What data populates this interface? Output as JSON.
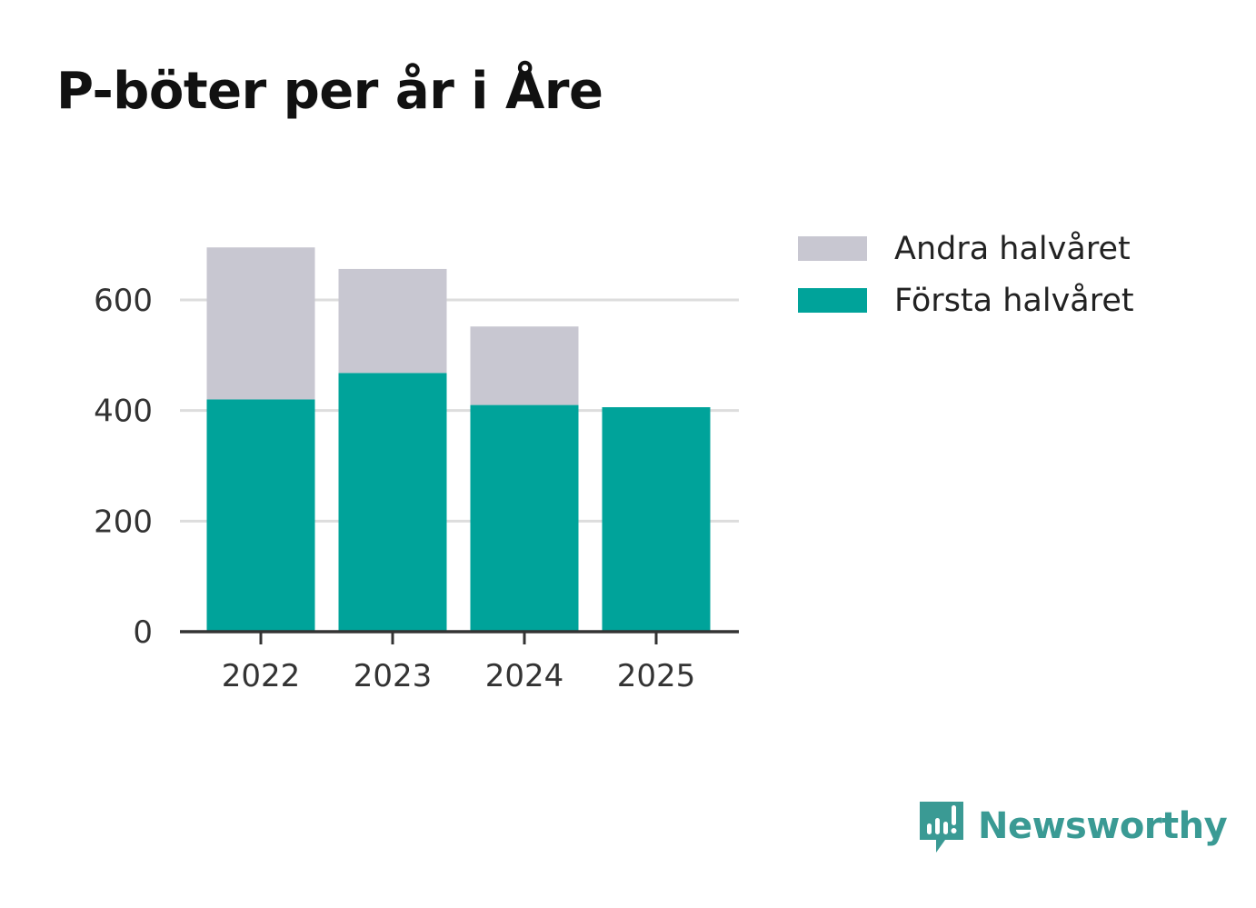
{
  "title": "P-böter per år i Åre",
  "colors": {
    "forsta": "#00a39a",
    "andra": "#c8c7d1",
    "grid": "#dddddd",
    "axis": "#333333",
    "brand": "#3a9a94"
  },
  "chart_data": {
    "type": "bar",
    "stacked": true,
    "title": "P-böter per år i Åre",
    "xlabel": "",
    "ylabel": "",
    "categories": [
      "2022",
      "2023",
      "2024",
      "2025"
    ],
    "series": [
      {
        "name": "Första halvåret",
        "values": [
          420,
          468,
          410,
          406
        ]
      },
      {
        "name": "Andra halvåret",
        "values": [
          275,
          188,
          142,
          0
        ]
      }
    ],
    "ylim": [
      0,
      700
    ],
    "yticks": [
      0,
      200,
      400,
      600
    ],
    "grid": true,
    "legend": "top-right"
  },
  "legend": {
    "items": [
      {
        "label": "Andra halvåret",
        "color": "#c8c7d1"
      },
      {
        "label": "Första halvåret",
        "color": "#00a39a"
      }
    ]
  },
  "brand": {
    "name": "Newsworthy",
    "icon": "newsworthy-logo-icon"
  }
}
